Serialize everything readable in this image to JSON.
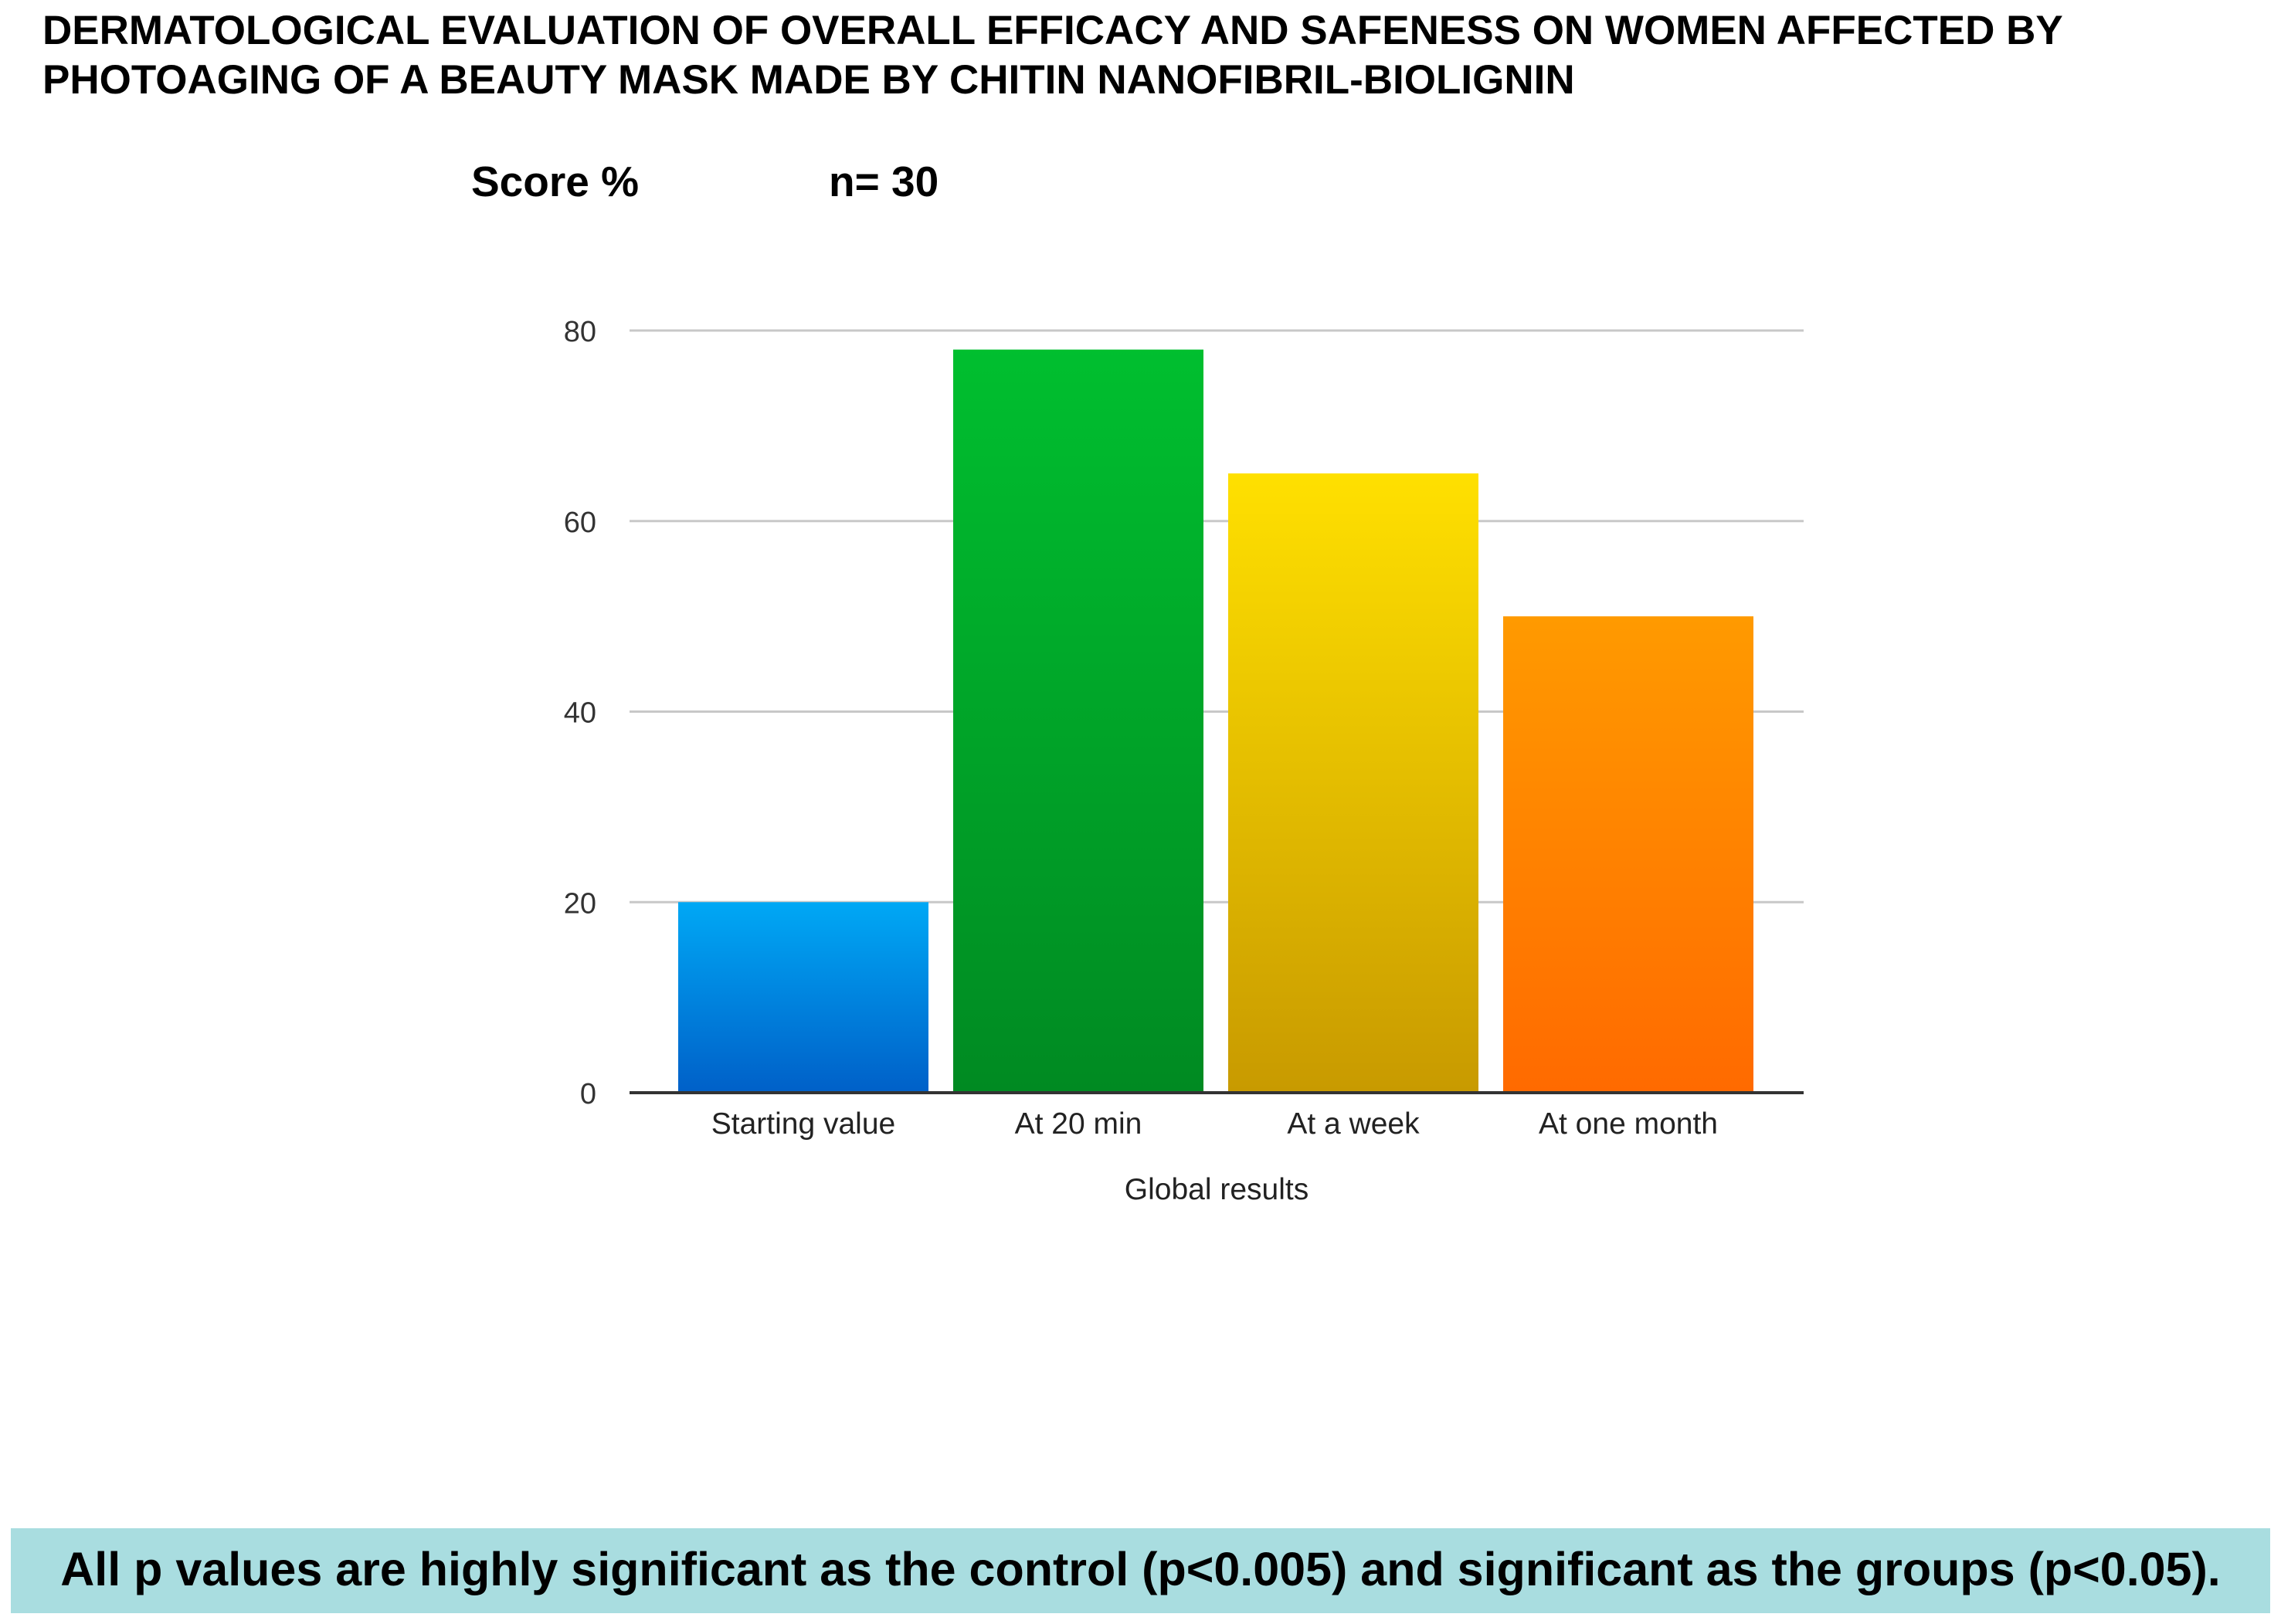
{
  "title": {
    "line1": "DERMATOLOGICAL EVALUATION OF OVERALL EFFICACY AND SAFENESS  ON WOMEN AFFECTED BY",
    "line2": "PHOTOAGING OF A BEAUTY MASK MADE BY CHITIN NANOFIBRIL-BIOLIGNIN"
  },
  "sample_size_label": "n= 30",
  "footer": {
    "note": "All p values are highly significant as the control (p<0.005) and significant as the groups (p<0.05)."
  },
  "colors": {
    "footer_background": "#a9dde0",
    "gridline": "#c8c8c8",
    "axis": "#333333"
  },
  "chart_data": {
    "type": "bar",
    "ylabel": "Score %",
    "xlabel": "Global results",
    "categories": [
      "Starting value",
      "At 20 min",
      "At a week",
      "At one month"
    ],
    "values": [
      20,
      78,
      65,
      50
    ],
    "ylim": [
      0,
      80
    ],
    "yticks": [
      0,
      20,
      40,
      60,
      80
    ],
    "grid": true,
    "bar_colors": [
      {
        "top": "#00a8f5",
        "bottom": "#0060c8"
      },
      {
        "top": "#00bf2f",
        "bottom": "#008a22"
      },
      {
        "top": "#ffe000",
        "bottom": "#c89a00"
      },
      {
        "top": "#ff9a00",
        "bottom": "#ff6a00"
      }
    ]
  }
}
